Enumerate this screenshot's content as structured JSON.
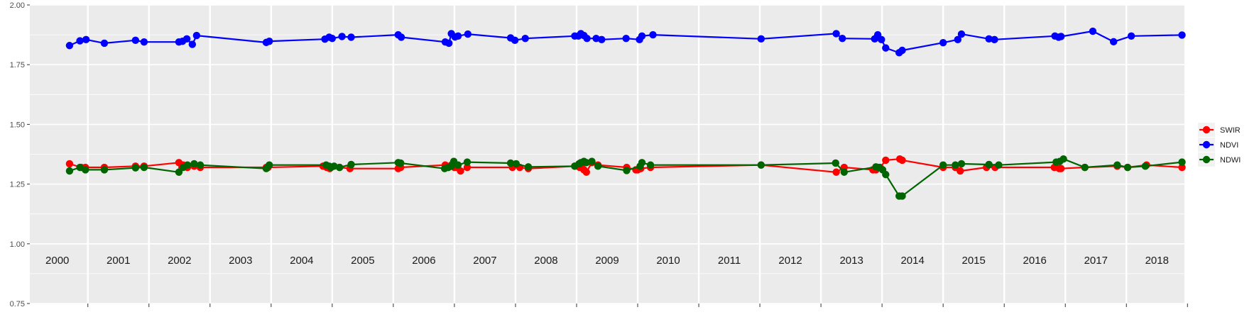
{
  "chart_data": {
    "type": "line",
    "title": "",
    "xlabel": "",
    "ylabel": "",
    "ylim": [
      0.75,
      2.0
    ],
    "xlim": [
      1999.55,
      2018.45
    ],
    "y_ticks": [
      "0.75",
      "1.00",
      "1.25",
      "1.50",
      "1.75",
      "2.00"
    ],
    "y_tick_values": [
      0.75,
      1.0,
      1.25,
      1.5,
      1.75,
      2.0
    ],
    "year_labels": [
      "2000",
      "2001",
      "2002",
      "2003",
      "2004",
      "2005",
      "2006",
      "2007",
      "2008",
      "2009",
      "2010",
      "2011",
      "2012",
      "2013",
      "2014",
      "2015",
      "2016",
      "2017",
      "2018"
    ],
    "grid": true,
    "panel_color": "#ebebeb",
    "grid_color": "#ffffff",
    "legend": {
      "position": "right"
    },
    "series": [
      {
        "name": "SWIR",
        "color": "#ff0000",
        "x": [
          2000.2,
          2000.39,
          2000.46,
          2000.77,
          2001.28,
          2001.42,
          2001.99,
          2002.04,
          2002.06,
          2002.13,
          2002.24,
          2002.34,
          2003.42,
          2003.45,
          2004.35,
          2004.41,
          2004.46,
          2004.48,
          2004.62,
          2004.79,
          2005.58,
          2005.62,
          2006.35,
          2006.4,
          2006.45,
          2006.5,
          2006.54,
          2006.6,
          2006.71,
          2007.45,
          2007.57,
          2007.71,
          2008.47,
          2008.55,
          2008.58,
          2008.62,
          2008.66,
          2008.75,
          2008.85,
          2009.32,
          2009.47,
          2009.5,
          2009.55,
          2009.71,
          2011.52,
          2012.75,
          2012.88,
          2013.35,
          2013.4,
          2013.47,
          2013.56,
          2013.79,
          2013.83,
          2014.5,
          2014.7,
          2014.78,
          2015.21,
          2015.35,
          2016.32,
          2016.4,
          2016.43,
          2016.82,
          2017.35,
          2017.52,
          2017.83,
          2018.41
        ],
        "y": [
          1.335,
          1.32,
          1.32,
          1.32,
          1.325,
          1.325,
          1.34,
          1.32,
          1.33,
          1.32,
          1.325,
          1.32,
          1.32,
          1.32,
          1.325,
          1.32,
          1.315,
          1.32,
          1.32,
          1.315,
          1.315,
          1.32,
          1.33,
          1.32,
          1.33,
          1.32,
          1.32,
          1.305,
          1.32,
          1.32,
          1.32,
          1.315,
          1.325,
          1.32,
          1.33,
          1.31,
          1.3,
          1.34,
          1.33,
          1.32,
          1.31,
          1.31,
          1.315,
          1.32,
          1.33,
          1.3,
          1.32,
          1.31,
          1.31,
          1.32,
          1.35,
          1.355,
          1.35,
          1.32,
          1.32,
          1.305,
          1.32,
          1.32,
          1.32,
          1.315,
          1.315,
          1.32,
          1.325,
          1.32,
          1.33,
          1.32
        ]
      },
      {
        "name": "NDVI",
        "color": "#0000ff",
        "x": [
          2000.2,
          2000.37,
          2000.47,
          2000.77,
          2001.28,
          2001.42,
          2001.99,
          2002.05,
          2002.12,
          2002.21,
          2002.28,
          2003.42,
          2003.47,
          2004.38,
          2004.45,
          2004.5,
          2004.66,
          2004.81,
          2005.58,
          2005.63,
          2006.35,
          2006.41,
          2006.45,
          2006.51,
          2006.56,
          2006.72,
          2007.42,
          2007.49,
          2007.66,
          2008.47,
          2008.53,
          2008.57,
          2008.62,
          2008.67,
          2008.82,
          2008.91,
          2009.31,
          2009.53,
          2009.57,
          2009.75,
          2011.52,
          2012.75,
          2012.85,
          2013.38,
          2013.43,
          2013.49,
          2013.56,
          2013.78,
          2013.83,
          2014.5,
          2014.74,
          2014.8,
          2015.25,
          2015.34,
          2016.33,
          2016.39,
          2016.43,
          2016.95,
          2017.29,
          2017.58,
          2018.41
        ],
        "y": [
          1.83,
          1.85,
          1.855,
          1.84,
          1.852,
          1.845,
          1.845,
          1.848,
          1.858,
          1.835,
          1.872,
          1.843,
          1.848,
          1.857,
          1.865,
          1.86,
          1.868,
          1.865,
          1.875,
          1.865,
          1.845,
          1.84,
          1.88,
          1.866,
          1.87,
          1.878,
          1.862,
          1.852,
          1.86,
          1.87,
          1.87,
          1.88,
          1.872,
          1.86,
          1.86,
          1.855,
          1.86,
          1.855,
          1.87,
          1.875,
          1.858,
          1.88,
          1.86,
          1.858,
          1.875,
          1.855,
          1.82,
          1.8,
          1.81,
          1.842,
          1.855,
          1.878,
          1.858,
          1.855,
          1.87,
          1.865,
          1.868,
          1.89,
          1.846,
          1.87,
          1.874
        ]
      },
      {
        "name": "NDWI",
        "color": "#006400",
        "x": [
          2000.2,
          2000.37,
          2000.46,
          2000.77,
          2001.28,
          2001.42,
          2001.99,
          2002.06,
          2002.13,
          2002.24,
          2002.34,
          2003.42,
          2003.47,
          2004.4,
          2004.45,
          2004.48,
          2004.53,
          2004.62,
          2004.81,
          2005.58,
          2005.62,
          2006.34,
          2006.4,
          2006.45,
          2006.49,
          2006.56,
          2006.71,
          2007.42,
          2007.51,
          2007.71,
          2008.47,
          2008.54,
          2008.57,
          2008.62,
          2008.66,
          2008.75,
          2008.85,
          2009.32,
          2009.54,
          2009.57,
          2009.71,
          2011.52,
          2012.74,
          2012.88,
          2013.4,
          2013.45,
          2013.51,
          2013.56,
          2013.78,
          2013.83,
          2014.5,
          2014.7,
          2014.8,
          2015.25,
          2015.41,
          2016.35,
          2016.41,
          2016.47,
          2016.82,
          2017.35,
          2017.52,
          2017.81,
          2018.41
        ],
        "y": [
          1.305,
          1.32,
          1.31,
          1.31,
          1.318,
          1.32,
          1.3,
          1.32,
          1.33,
          1.335,
          1.33,
          1.315,
          1.33,
          1.33,
          1.325,
          1.32,
          1.325,
          1.32,
          1.332,
          1.34,
          1.338,
          1.315,
          1.32,
          1.325,
          1.345,
          1.33,
          1.342,
          1.338,
          1.335,
          1.322,
          1.325,
          1.335,
          1.34,
          1.345,
          1.34,
          1.345,
          1.325,
          1.307,
          1.325,
          1.34,
          1.33,
          1.33,
          1.338,
          1.3,
          1.322,
          1.32,
          1.31,
          1.29,
          1.2,
          1.2,
          1.33,
          1.33,
          1.335,
          1.332,
          1.33,
          1.342,
          1.345,
          1.355,
          1.32,
          1.33,
          1.32,
          1.325,
          1.342
        ]
      }
    ]
  }
}
